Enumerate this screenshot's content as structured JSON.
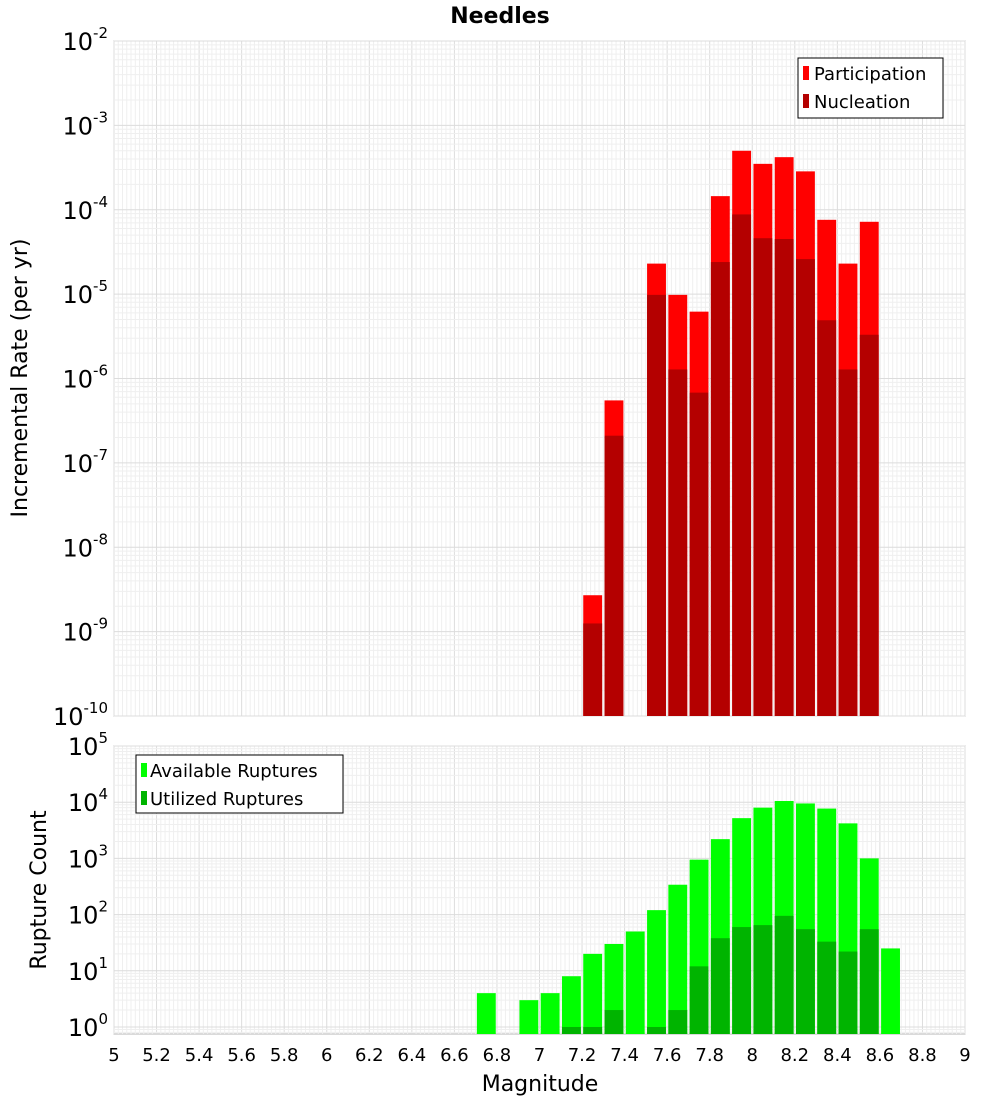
{
  "chart_data": [
    {
      "type": "bar",
      "title": "Needles",
      "ylabel": "Incremental Rate (per yr)",
      "xlabel": "",
      "yscale": "log",
      "xlim": [
        5,
        9
      ],
      "ylim": [
        1e-10,
        0.01
      ],
      "grid": true,
      "legend_position": "top-right",
      "bin_width": 0.1,
      "series": [
        {
          "name": "Participation",
          "color": "#ff0000",
          "x": [
            7.25,
            7.35,
            7.55,
            7.65,
            7.75,
            7.85,
            7.95,
            8.05,
            8.15,
            8.25,
            8.35,
            8.45,
            8.55
          ],
          "values": [
            2.7e-09,
            5.5e-07,
            2.3e-05,
            9.8e-06,
            6.2e-06,
            0.000145,
            0.0005,
            0.00035,
            0.00042,
            0.000285,
            7.6e-05,
            2.3e-05,
            7.2e-05
          ]
        },
        {
          "name": "Nucleation",
          "color": "#b40000",
          "x": [
            7.25,
            7.35,
            7.55,
            7.65,
            7.75,
            7.85,
            7.95,
            8.05,
            8.15,
            8.25,
            8.35,
            8.45,
            8.55
          ],
          "values": [
            1.25e-09,
            2.1e-07,
            9.8e-06,
            1.28e-06,
            6.8e-07,
            2.4e-05,
            8.8e-05,
            4.6e-05,
            4.5e-05,
            2.6e-05,
            4.9e-06,
            1.28e-06,
            3.3e-06
          ]
        }
      ],
      "yticks": [
        {
          "base": "10",
          "exp": "-10"
        },
        {
          "base": "10",
          "exp": "-9"
        },
        {
          "base": "10",
          "exp": "-8"
        },
        {
          "base": "10",
          "exp": "-7"
        },
        {
          "base": "10",
          "exp": "-6"
        },
        {
          "base": "10",
          "exp": "-5"
        },
        {
          "base": "10",
          "exp": "-4"
        },
        {
          "base": "10",
          "exp": "-3"
        },
        {
          "base": "10",
          "exp": "-2"
        }
      ]
    },
    {
      "type": "bar",
      "title": "",
      "ylabel": "Rupture Count",
      "xlabel": "Magnitude",
      "yscale": "log",
      "xlim": [
        5,
        9
      ],
      "ylim": [
        0.75,
        100000.0
      ],
      "grid": true,
      "legend_position": "top-left",
      "bin_width": 0.1,
      "series": [
        {
          "name": "Available Ruptures",
          "color": "#00ff00",
          "x": [
            6.75,
            6.95,
            7.05,
            7.15,
            7.25,
            7.35,
            7.45,
            7.55,
            7.65,
            7.75,
            7.85,
            7.95,
            8.05,
            8.15,
            8.25,
            8.35,
            8.45,
            8.55,
            8.65
          ],
          "values": [
            4,
            3,
            4,
            8,
            20,
            30,
            50,
            120,
            340,
            950,
            2200,
            5200,
            8000,
            10500,
            9500,
            7700,
            4200,
            1000,
            25
          ]
        },
        {
          "name": "Utilized Ruptures",
          "color": "#00b400",
          "x": [
            7.15,
            7.25,
            7.35,
            7.55,
            7.65,
            7.75,
            7.85,
            7.95,
            8.05,
            8.15,
            8.25,
            8.35,
            8.45,
            8.55
          ],
          "values": [
            1,
            1,
            2,
            1,
            2,
            12,
            38,
            60,
            65,
            95,
            55,
            33,
            22,
            55
          ]
        }
      ],
      "yticks": [
        {
          "base": "10",
          "exp": "0"
        },
        {
          "base": "10",
          "exp": "1"
        },
        {
          "base": "10",
          "exp": "2"
        },
        {
          "base": "10",
          "exp": "3"
        },
        {
          "base": "10",
          "exp": "4"
        },
        {
          "base": "10",
          "exp": "5"
        }
      ],
      "xticks": [
        "5",
        "5.2",
        "5.4",
        "5.6",
        "5.8",
        "6",
        "6.2",
        "6.4",
        "6.6",
        "6.8",
        "7",
        "7.2",
        "7.4",
        "7.6",
        "7.8",
        "8",
        "8.2",
        "8.4",
        "8.6",
        "8.8",
        "9"
      ]
    }
  ]
}
